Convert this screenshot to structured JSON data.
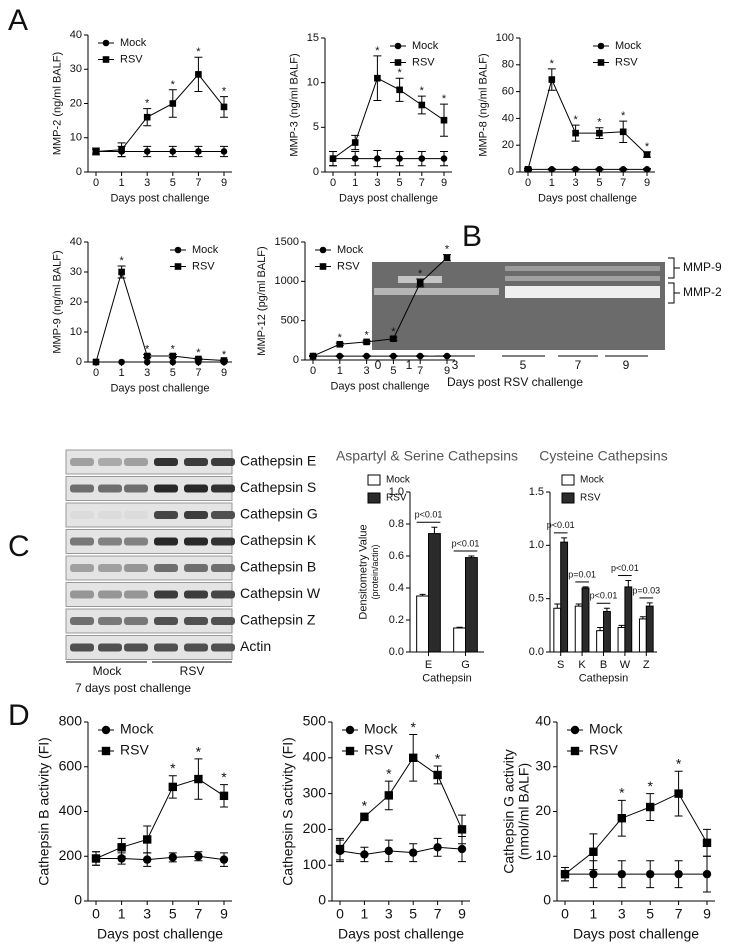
{
  "chart_data": [
    {
      "type": "line",
      "ylabel": "MMP-2 (ng/ml BALF)",
      "xlabel": "Days post challenge",
      "categories": [
        "0",
        "1",
        "3",
        "5",
        "7",
        "9"
      ],
      "ylim": [
        0,
        40
      ],
      "yticks": [
        0,
        10,
        20,
        30,
        40
      ],
      "legend": "upper left",
      "series": [
        {
          "name": "Mock",
          "color": "#000000",
          "marker": "circle",
          "values": [
            6,
            6,
            6,
            6,
            6,
            6
          ],
          "errors": [
            1,
            1.5,
            1.5,
            1.5,
            1.5,
            1.5
          ]
        },
        {
          "name": "RSV",
          "color": "#000000",
          "marker": "square",
          "values": [
            6,
            6.5,
            16,
            20,
            28.5,
            19
          ],
          "errors": [
            0.5,
            2,
            2.5,
            4,
            5,
            3
          ],
          "annotations": [
            null,
            null,
            "*",
            "*",
            "*",
            "*"
          ]
        }
      ]
    },
    {
      "type": "line",
      "ylabel": "MMP-3 (ng/ml BALF)",
      "xlabel": "Days post challenge",
      "categories": [
        "0",
        "1",
        "3",
        "5",
        "7",
        "9"
      ],
      "ylim": [
        0,
        15
      ],
      "yticks": [
        0,
        5,
        10,
        15
      ],
      "legend": "upper right",
      "series": [
        {
          "name": "Mock",
          "color": "#000000",
          "marker": "circle",
          "values": [
            1.5,
            1.5,
            1.5,
            1.5,
            1.5,
            1.5
          ],
          "errors": [
            0.8,
            0.8,
            0.9,
            0.8,
            0.8,
            0.8
          ]
        },
        {
          "name": "RSV",
          "color": "#000000",
          "marker": "square",
          "values": [
            1.5,
            3.3,
            10.5,
            9.2,
            7.5,
            5.8
          ],
          "errors": [
            0.8,
            0.8,
            2.5,
            1.3,
            1,
            1.8
          ],
          "annotations": [
            null,
            null,
            "*",
            "*",
            "*",
            "*"
          ]
        }
      ]
    },
    {
      "type": "line",
      "ylabel": "MMP-8 (ng/ml BALF)",
      "xlabel": "Days post challenge",
      "categories": [
        "0",
        "1",
        "3",
        "5",
        "7",
        "9"
      ],
      "ylim": [
        0,
        100
      ],
      "yticks": [
        0,
        20,
        40,
        60,
        80,
        100
      ],
      "legend": "upper right",
      "series": [
        {
          "name": "Mock",
          "color": "#000000",
          "marker": "circle",
          "values": [
            2,
            2,
            2,
            2,
            2,
            2
          ],
          "errors": [
            0.5,
            0.5,
            0.5,
            0.5,
            0.5,
            0.5
          ]
        },
        {
          "name": "RSV",
          "color": "#000000",
          "marker": "square",
          "values": [
            2,
            69,
            29,
            29,
            30,
            13
          ],
          "errors": [
            1,
            8,
            6,
            4,
            8,
            2
          ],
          "annotations": [
            null,
            "*",
            "*",
            "*",
            "*",
            "*"
          ]
        }
      ]
    },
    {
      "type": "line",
      "ylabel": "MMP-9 (ng/ml BALF)",
      "xlabel": "Days post challenge",
      "categories": [
        "0",
        "1",
        "3",
        "5",
        "7",
        "9"
      ],
      "ylim": [
        0,
        40
      ],
      "yticks": [
        0,
        10,
        20,
        30,
        40
      ],
      "legend": "upper right",
      "series": [
        {
          "name": "Mock",
          "color": "#000000",
          "marker": "circle",
          "values": [
            0,
            0,
            0,
            0,
            0,
            0
          ],
          "errors": [
            0,
            0,
            0,
            0,
            0,
            0
          ]
        },
        {
          "name": "RSV",
          "color": "#000000",
          "marker": "square",
          "values": [
            0,
            30,
            2,
            2,
            1,
            0.5
          ],
          "errors": [
            0,
            2,
            0.5,
            0.5,
            0.3,
            0.2
          ],
          "annotations": [
            null,
            "*",
            "*",
            "*",
            "*",
            "*"
          ]
        }
      ]
    },
    {
      "type": "line",
      "ylabel": "MMP-12 (pg/ml BALF)",
      "xlabel": "Days post challenge",
      "categories": [
        "0",
        "1",
        "3",
        "5",
        "7",
        "9"
      ],
      "ylim": [
        0,
        1500
      ],
      "yticks": [
        0,
        500,
        1000,
        1500
      ],
      "legend": "upper left",
      "series": [
        {
          "name": "Mock",
          "color": "#000000",
          "marker": "circle",
          "values": [
            50,
            50,
            50,
            50,
            50,
            50
          ],
          "errors": [
            5,
            5,
            5,
            5,
            5,
            5
          ]
        },
        {
          "name": "RSV",
          "color": "#000000",
          "marker": "square",
          "values": [
            50,
            200,
            230,
            270,
            980,
            1300
          ],
          "errors": [
            5,
            15,
            15,
            20,
            50,
            40
          ],
          "annotations": [
            null,
            "*",
            "*",
            "*",
            "*",
            "*"
          ]
        }
      ]
    },
    {
      "type": "bar",
      "title": "Aspartyl & Serine Cathepsins",
      "ylabel": "Densitometry Value",
      "ylabel_sub": "(protein/actin)",
      "xlabel": "Cathepsin",
      "categories": [
        "E",
        "G"
      ],
      "ylim": [
        0,
        1
      ],
      "yticks": [
        {
          "value": 0,
          "label": "0.0"
        },
        0.2,
        0.4,
        0.6,
        0.8,
        {
          "value": 1,
          "label": "1.0"
        }
      ],
      "legend": "upper left",
      "annotations": [
        "p<0.01",
        "p<0.01"
      ],
      "series": [
        {
          "name": "Mock",
          "color": "#ffffff",
          "values": [
            0.35,
            0.15
          ],
          "errors": [
            0.01,
            0.005
          ]
        },
        {
          "name": "RSV",
          "color": "#2b2b2b",
          "values": [
            0.74,
            0.59
          ],
          "errors": [
            0.04,
            0.01
          ]
        }
      ]
    },
    {
      "type": "bar",
      "title": "Cysteine Cathepsins",
      "xlabel": "Cathepsin",
      "categories": [
        "S",
        "K",
        "B",
        "W",
        "Z"
      ],
      "ylim": [
        0,
        1.5
      ],
      "yticks": [
        {
          "value": 0,
          "label": "0.0"
        },
        0.5,
        {
          "value": 1,
          "label": "1.0"
        },
        1.5
      ],
      "legend": "upper left",
      "annotations": [
        "p<0.01",
        "p=0.01",
        "p<0.01",
        "p<0.01",
        "p=0.03"
      ],
      "series": [
        {
          "name": "Mock",
          "color": "#ffffff",
          "values": [
            0.41,
            0.43,
            0.2,
            0.23,
            0.31
          ],
          "errors": [
            0.04,
            0.02,
            0.03,
            0.02,
            0.02
          ]
        },
        {
          "name": "RSV",
          "color": "#2b2b2b",
          "values": [
            1.03,
            0.6,
            0.38,
            0.61,
            0.43
          ],
          "errors": [
            0.04,
            0.01,
            0.03,
            0.06,
            0.03
          ]
        }
      ]
    },
    {
      "type": "line",
      "ylabel": "Cathepsin B activity (FI)",
      "xlabel": "Days post challenge",
      "categories": [
        "0",
        "1",
        "3",
        "5",
        "7",
        "9"
      ],
      "ylim": [
        0,
        800
      ],
      "yticks": [
        0,
        200,
        400,
        600,
        800
      ],
      "legend": "upper left",
      "series": [
        {
          "name": "Mock",
          "color": "#000000",
          "marker": "circle",
          "values": [
            190,
            190,
            185,
            195,
            200,
            185
          ],
          "errors": [
            30,
            25,
            30,
            20,
            20,
            30
          ]
        },
        {
          "name": "RSV",
          "color": "#000000",
          "marker": "square",
          "values": [
            190,
            240,
            275,
            510,
            545,
            470
          ],
          "errors": [
            30,
            40,
            60,
            50,
            90,
            50
          ],
          "annotations": [
            null,
            null,
            null,
            "*",
            "*",
            "*"
          ]
        }
      ]
    },
    {
      "type": "line",
      "ylabel": "Cathepsin S activity (FI)",
      "xlabel": "Days post challenge",
      "categories": [
        "0",
        "1",
        "3",
        "5",
        "7",
        "9"
      ],
      "ylim": [
        0,
        500
      ],
      "yticks": [
        0,
        100,
        200,
        300,
        400,
        500
      ],
      "legend": "upper left",
      "series": [
        {
          "name": "Mock",
          "color": "#000000",
          "marker": "circle",
          "values": [
            140,
            130,
            140,
            135,
            150,
            145
          ],
          "errors": [
            30,
            20,
            30,
            25,
            25,
            35
          ]
        },
        {
          "name": "RSV",
          "color": "#000000",
          "marker": "square",
          "values": [
            145,
            235,
            295,
            400,
            352,
            200
          ],
          "errors": [
            30,
            10,
            40,
            65,
            25,
            40
          ],
          "annotations": [
            null,
            "*",
            "*",
            "*",
            "*",
            null
          ]
        }
      ]
    },
    {
      "type": "line",
      "ylabel": "Cathepsin G activity",
      "ylabel_sub": "(nmol/ml BALF)",
      "xlabel": "Days post challenge",
      "categories": [
        "0",
        "1",
        "3",
        "5",
        "7",
        "9"
      ],
      "ylim": [
        0,
        40
      ],
      "yticks": [
        0,
        10,
        20,
        30,
        40
      ],
      "legend": "upper left",
      "series": [
        {
          "name": "Mock",
          "color": "#000000",
          "marker": "circle",
          "values": [
            6,
            6,
            6,
            6,
            6,
            6
          ],
          "errors": [
            1.5,
            3,
            3,
            3,
            3,
            4
          ]
        },
        {
          "name": "RSV",
          "color": "#000000",
          "marker": "square",
          "values": [
            6,
            11,
            18.5,
            21,
            24,
            13
          ],
          "errors": [
            1.5,
            4,
            4,
            3,
            5,
            3
          ],
          "annotations": [
            null,
            null,
            "*",
            "*",
            "*",
            null
          ]
        }
      ]
    }
  ],
  "figure": {
    "panels": [
      "A",
      "B",
      "C",
      "D"
    ],
    "gel": {
      "lanes": [
        "0",
        "1",
        "3",
        "5",
        "7",
        "9"
      ],
      "xlabel": "Days post RSV challenge",
      "bands": [
        "MMP-9",
        "MMP-2"
      ]
    },
    "blot": {
      "rows": [
        "Cathepsin E",
        "Cathepsin S",
        "Cathepsin G",
        "Cathepsin K",
        "Cathepsin B",
        "Cathepsin W",
        "Cathepsin Z",
        "Actin"
      ],
      "groups": [
        "Mock",
        "RSV"
      ],
      "caption": "7 days post challenge"
    }
  }
}
